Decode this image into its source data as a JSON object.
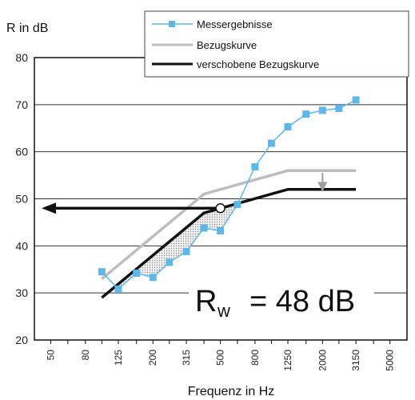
{
  "chart_data": {
    "type": "line",
    "ylabel": "R in dB",
    "xlabel": "Frequenz in Hz",
    "ylim": [
      20,
      80
    ],
    "yticks": [
      "20",
      "30",
      "40",
      "50",
      "60",
      "70",
      "80"
    ],
    "categories": [
      "50",
      "80",
      "125",
      "200",
      "315",
      "500",
      "800",
      "1250",
      "2000",
      "3150",
      "5000"
    ],
    "legend_position": "top-right",
    "grid": true,
    "series": [
      {
        "name": "Messergebnisse",
        "color": "#5bb8e8",
        "marker": "square",
        "points": [
          {
            "f": "100",
            "y": 34.5
          },
          {
            "f": "125",
            "y": 30.8
          },
          {
            "f": "160",
            "y": 34.2
          },
          {
            "f": "200",
            "y": 33.3
          },
          {
            "f": "250",
            "y": 36.5
          },
          {
            "f": "315",
            "y": 38.8
          },
          {
            "f": "400",
            "y": 43.8
          },
          {
            "f": "500",
            "y": 43.2
          },
          {
            "f": "630",
            "y": 48.8
          },
          {
            "f": "800",
            "y": 56.8
          },
          {
            "f": "1000",
            "y": 61.8
          },
          {
            "f": "1250",
            "y": 65.3
          },
          {
            "f": "1600",
            "y": 68.0
          },
          {
            "f": "2000",
            "y": 68.8
          },
          {
            "f": "2500",
            "y": 69.2
          },
          {
            "f": "3150",
            "y": 71.0
          }
        ]
      },
      {
        "name": "Bezugskurve",
        "color": "#bdbdbd",
        "points": [
          {
            "f": "100",
            "y": 33
          },
          {
            "f": "400",
            "y": 51
          },
          {
            "f": "1250",
            "y": 56
          },
          {
            "f": "3150",
            "y": 56
          }
        ]
      },
      {
        "name": "verschobene Bezugskurve",
        "color": "#111111",
        "points": [
          {
            "f": "100",
            "y": 29
          },
          {
            "f": "400",
            "y": 47
          },
          {
            "f": "1250",
            "y": 52
          },
          {
            "f": "3150",
            "y": 52
          }
        ]
      }
    ],
    "annotations": {
      "result_main": "R",
      "result_sub": "w",
      "result_value": "= 48 dB",
      "rw_value": 48
    }
  }
}
